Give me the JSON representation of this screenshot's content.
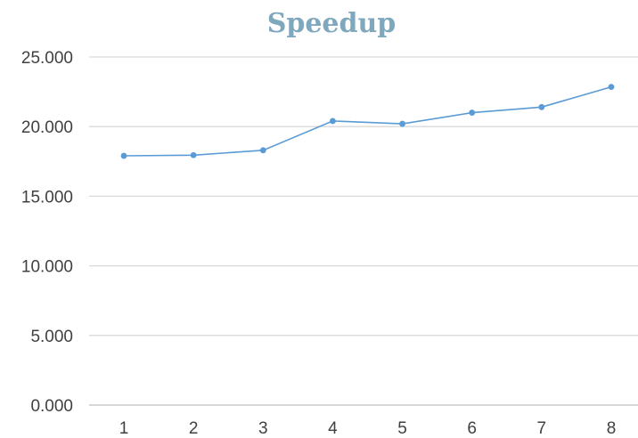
{
  "chart_data": {
    "type": "line",
    "title": "Speedup",
    "categories": [
      "1",
      "2",
      "3",
      "4",
      "5",
      "6",
      "7",
      "8"
    ],
    "series": [
      {
        "values": [
          17.9,
          17.95,
          18.3,
          20.4,
          20.2,
          21.0,
          21.4,
          22.85
        ]
      }
    ],
    "ylim": [
      0,
      25
    ],
    "yticks": [
      "0.000",
      "5.000",
      "10.000",
      "15.000",
      "20.000",
      "25.000"
    ],
    "xlabel": "",
    "ylabel": "",
    "grid": true,
    "legend": "none"
  },
  "colors": {
    "series": "#5b9bd5",
    "title": "#7fa7bd"
  }
}
